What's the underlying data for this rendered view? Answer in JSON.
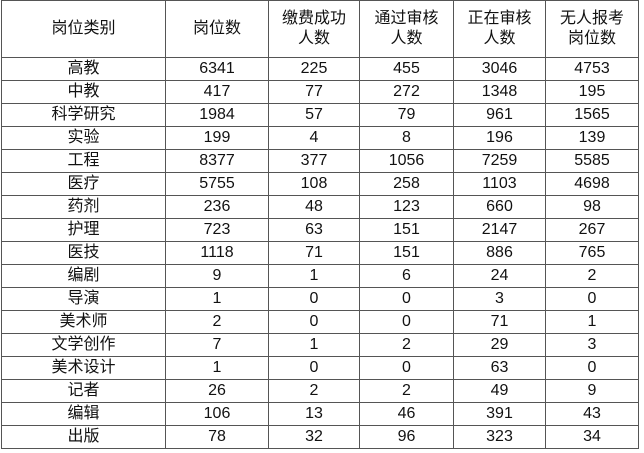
{
  "headers": [
    "岗位类别",
    "岗位数",
    "缴费成功\n人数",
    "通过审核\n人数",
    "正在审核\n人数",
    "无人报考\n岗位数"
  ],
  "header_lines": [
    [
      "岗位类别"
    ],
    [
      "岗位数"
    ],
    [
      "缴费成功",
      "人数"
    ],
    [
      "通过审核",
      "人数"
    ],
    [
      "正在审核",
      "人数"
    ],
    [
      "无人报考",
      "岗位数"
    ]
  ],
  "rows": [
    [
      "高教",
      "6341",
      "225",
      "455",
      "3046",
      "4753"
    ],
    [
      "中教",
      "417",
      "77",
      "272",
      "1348",
      "195"
    ],
    [
      "科学研究",
      "1984",
      "57",
      "79",
      "961",
      "1565"
    ],
    [
      "实验",
      "199",
      "4",
      "8",
      "196",
      "139"
    ],
    [
      "工程",
      "8377",
      "377",
      "1056",
      "7259",
      "5585"
    ],
    [
      "医疗",
      "5755",
      "108",
      "258",
      "1103",
      "4698"
    ],
    [
      "药剂",
      "236",
      "48",
      "123",
      "660",
      "98"
    ],
    [
      "护理",
      "723",
      "63",
      "151",
      "2147",
      "267"
    ],
    [
      "医技",
      "1118",
      "71",
      "151",
      "886",
      "765"
    ],
    [
      "编剧",
      "9",
      "1",
      "6",
      "24",
      "2"
    ],
    [
      "导演",
      "1",
      "0",
      "0",
      "3",
      "0"
    ],
    [
      "美术师",
      "2",
      "0",
      "0",
      "71",
      "1"
    ],
    [
      "文学创作",
      "7",
      "1",
      "2",
      "29",
      "3"
    ],
    [
      "美术设计",
      "1",
      "0",
      "0",
      "63",
      "0"
    ],
    [
      "记者",
      "26",
      "2",
      "2",
      "49",
      "9"
    ],
    [
      "编辑",
      "106",
      "13",
      "46",
      "391",
      "43"
    ],
    [
      "出版",
      "78",
      "32",
      "96",
      "323",
      "34"
    ]
  ]
}
